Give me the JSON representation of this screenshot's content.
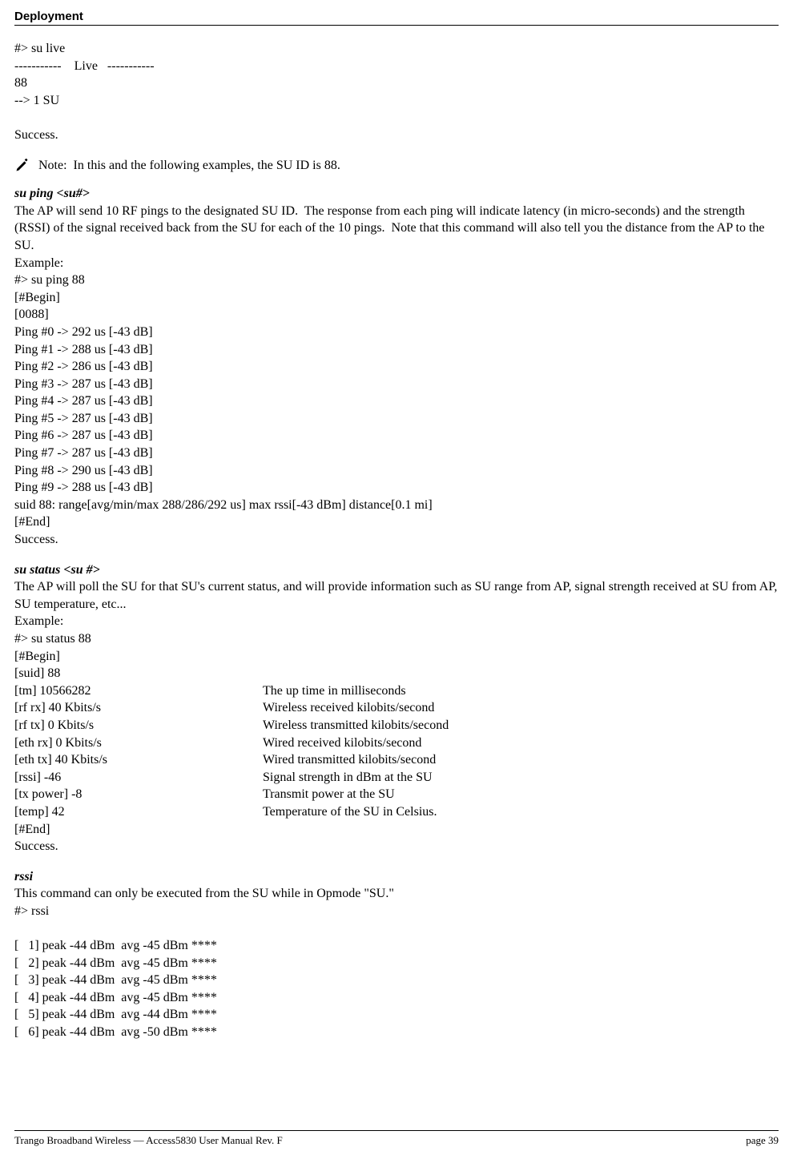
{
  "header": {
    "title": "Deployment"
  },
  "su_live": {
    "cmd": "#> su live",
    "banner": "-----------    Live   -----------",
    "id": "88",
    "count": "--> 1 SU",
    "success": "Success."
  },
  "note": {
    "text": "Note:  In this and the following examples, the SU ID is 88."
  },
  "su_ping": {
    "title": "su ping <su#>",
    "desc": "The AP will send 10 RF pings to the designated SU ID.  The response from each ping will indicate latency (in micro-seconds) and the strength (RSSI) of the signal received back from the SU for each of the 10 pings.  Note that this command will also tell you the distance from the AP to the SU.",
    "example_label": "Example:",
    "cmd": "#> su ping 88",
    "begin": "[#Begin]",
    "idline": "[0088]",
    "pings": [
      "Ping #0 -> 292 us [-43 dB]",
      "Ping #1 -> 288 us [-43 dB]",
      "Ping #2 -> 286 us [-43 dB]",
      "Ping #3 -> 287 us [-43 dB]",
      "Ping #4 -> 287 us [-43 dB]",
      "Ping #5 -> 287 us [-43 dB]",
      "Ping #6 -> 287 us [-43 dB]",
      "Ping #7 -> 287 us [-43 dB]",
      "Ping #8 -> 290 us [-43 dB]",
      "Ping #9 -> 288 us [-43 dB]"
    ],
    "summary": "suid 88: range[avg/min/max 288/286/292 us] max rssi[-43 dBm] distance[0.1 mi]",
    "end": "[#End]",
    "success": "Success."
  },
  "su_status": {
    "title": "su status <su #>",
    "desc": "The AP will poll the SU for that SU's current status, and will provide information such as SU range from AP, signal strength received at SU from AP, SU temperature, etc...",
    "example_label": "Example:",
    "cmd": "#> su status 88",
    "begin": "[#Begin]",
    "suid": "[suid] 88",
    "rows": [
      {
        "left": "[tm] 10566282",
        "right": "The up time in milliseconds"
      },
      {
        "left": "[rf rx] 40 Kbits/s",
        "right": "Wireless received kilobits/second"
      },
      {
        "left": "[rf tx] 0 Kbits/s",
        "right": "Wireless transmitted kilobits/second"
      },
      {
        "left": "[eth rx] 0 Kbits/s",
        "right": "Wired received kilobits/second"
      },
      {
        "left": "[eth tx] 40 Kbits/s",
        "right": "Wired transmitted kilobits/second"
      },
      {
        "left": "[rssi] -46",
        "right": "Signal strength in dBm at the SU"
      },
      {
        "left": "[tx power] -8",
        "right": "Transmit power at the SU"
      },
      {
        "left": "[temp] 42",
        "right": "Temperature of the SU in Celsius."
      }
    ],
    "end": "[#End]",
    "success": "Success."
  },
  "rssi": {
    "title": "rssi",
    "desc": "This command can only be executed from the SU while in Opmode \"SU.\"",
    "cmd": "#> rssi",
    "rows": [
      "[   1] peak -44 dBm  avg -45 dBm ****",
      "[   2] peak -44 dBm  avg -45 dBm ****",
      "[   3] peak -44 dBm  avg -45 dBm ****",
      "[   4] peak -44 dBm  avg -45 dBm ****",
      "[   5] peak -44 dBm  avg -44 dBm ****",
      "[   6] peak -44 dBm  avg -50 dBm ****"
    ]
  },
  "footer": {
    "left": "Trango Broadband Wireless — Access5830 User Manual  Rev. F",
    "right": "page 39"
  }
}
